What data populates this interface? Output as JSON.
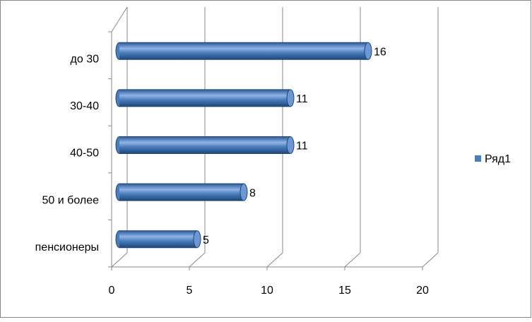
{
  "chart_data": {
    "type": "bar",
    "orientation": "horizontal",
    "categories": [
      "до 30",
      "30-40",
      "40-50",
      "50 и более",
      "пенсионеры"
    ],
    "series": [
      {
        "name": "Ряд1",
        "color": "#4a7ebb",
        "values": [
          16,
          11,
          11,
          8,
          5
        ]
      }
    ],
    "xlim": [
      0,
      20
    ],
    "xticks": [
      0,
      5,
      10,
      15,
      20
    ],
    "grid": true,
    "legend": "right"
  }
}
